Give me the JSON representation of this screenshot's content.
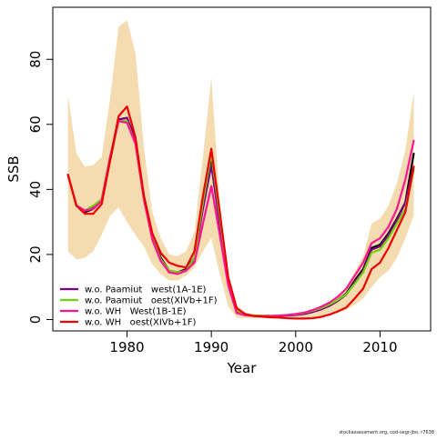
{
  "chart_data": {
    "type": "line",
    "xlabel": "Year",
    "ylabel": "SSB",
    "xlim": [
      1971.2,
      2016.0
    ],
    "ylim": [
      -3.5,
      96
    ],
    "x_ticks": [
      1980,
      1990,
      2000,
      2010
    ],
    "y_ticks": [
      0,
      20,
      40,
      60,
      80
    ],
    "legend_position": "bottom-left",
    "band": {
      "color": "#f5dcb0",
      "years": [
        1973,
        1974,
        1975,
        1976,
        1977,
        1978,
        1979,
        1980,
        1981,
        1982,
        1983,
        1984,
        1985,
        1986,
        1987,
        1988,
        1989,
        1990,
        1991,
        1992,
        1993,
        1994,
        1995,
        1996,
        1997,
        1998,
        1999,
        2000,
        2001,
        2002,
        2003,
        2004,
        2005,
        2006,
        2007,
        2008,
        2009,
        2010,
        2011,
        2012,
        2013,
        2014
      ],
      "upper": [
        69,
        51,
        47,
        47.5,
        50,
        68,
        90,
        92,
        82,
        53,
        33,
        25,
        20,
        19.5,
        21,
        27,
        50,
        74.5,
        36,
        12,
        4.5,
        2.2,
        1.5,
        1.3,
        1.3,
        1.3,
        1.5,
        1.8,
        2.2,
        3,
        4.2,
        5.5,
        7.5,
        10,
        14.5,
        19.5,
        29.5,
        31,
        35,
        42,
        52,
        70
      ],
      "lower": [
        21,
        18.5,
        19,
        21,
        26,
        32,
        34.5,
        30,
        26,
        22.5,
        17,
        14,
        12,
        12,
        13.5,
        16,
        21,
        25,
        14,
        4,
        0.6,
        0.4,
        0.4,
        0.4,
        0.3,
        0.2,
        0.2,
        0.2,
        0.3,
        0.5,
        0.9,
        1.3,
        2,
        3,
        4.5,
        6.5,
        10,
        13,
        15,
        19,
        25,
        32
      ]
    },
    "x": [
      1973,
      1974,
      1975,
      1976,
      1977,
      1978,
      1979,
      1980,
      1981,
      1982,
      1983,
      1984,
      1985,
      1986,
      1987,
      1988,
      1989,
      1990,
      1991,
      1992,
      1993,
      1994,
      1995,
      1996,
      1997,
      1998,
      1999,
      2000,
      2001,
      2002,
      2003,
      2004,
      2005,
      2006,
      2007,
      2008,
      2009,
      2010,
      2011,
      2012,
      2013,
      2014
    ],
    "series": [
      {
        "name": "black",
        "color": "#000000",
        "in_legend": false,
        "values": [
          44.5,
          35,
          33,
          34,
          36.5,
          49,
          61.5,
          62,
          55,
          38,
          26,
          19,
          15,
          14.5,
          15.5,
          19,
          35,
          48.5,
          30,
          11.5,
          2.5,
          1.5,
          1.2,
          1.1,
          1.1,
          1.2,
          1.3,
          1.5,
          1.8,
          2.5,
          3.3,
          4.5,
          6,
          8,
          12,
          15.5,
          22,
          23,
          26.5,
          31,
          36,
          51
        ]
      },
      {
        "name": "w.o. Paamiut   west(1A-1E)",
        "color": "#7b0082",
        "in_legend": true,
        "values": [
          44.5,
          35,
          33.5,
          34.5,
          37,
          50,
          61.5,
          62,
          54.5,
          37.5,
          25.5,
          18.5,
          14.5,
          14.5,
          15,
          18.5,
          34,
          47.5,
          29,
          11,
          2.3,
          1.4,
          1.1,
          1.1,
          1.1,
          1.1,
          1.2,
          1.4,
          1.7,
          2.3,
          3.1,
          4.2,
          5.7,
          7.7,
          11.5,
          15,
          21.5,
          22.5,
          26,
          30.5,
          36,
          47
        ]
      },
      {
        "name": "w.o. Paamiut   oest(XIVb+1F)",
        "color": "#72d10b",
        "in_legend": true,
        "values": [
          44.5,
          35,
          33.5,
          35,
          37,
          50,
          61,
          61,
          54,
          37,
          25,
          18.5,
          15,
          14.5,
          15,
          19,
          36,
          51,
          31.5,
          12.5,
          2.8,
          1.6,
          1.3,
          1.2,
          1.2,
          1.3,
          1.4,
          1.6,
          2,
          2.7,
          3.5,
          4.6,
          6,
          7.8,
          11,
          14.5,
          20.5,
          21.5,
          25,
          29.5,
          34,
          46
        ]
      },
      {
        "name": "w.o. WH   West(1B-1E)",
        "color": "#ff1493",
        "in_legend": true,
        "values": [
          44.5,
          35,
          33.5,
          34,
          36.5,
          50,
          61,
          60.5,
          54,
          37,
          24.5,
          18,
          14.5,
          14,
          15,
          17.5,
          29.5,
          41,
          26,
          10.5,
          2,
          1.3,
          1.1,
          1.1,
          1.1,
          1.2,
          1.4,
          1.7,
          2.1,
          2.9,
          3.9,
          5.2,
          7,
          9.5,
          13.5,
          17.5,
          23.5,
          25,
          28.5,
          34,
          43,
          55
        ]
      },
      {
        "name": "w.o. WH   oest(XIVb+1F)",
        "color": "#ee0000",
        "in_legend": true,
        "values": [
          44.5,
          35,
          32.5,
          32.5,
          35.5,
          49,
          62.5,
          65.5,
          56,
          38,
          26.5,
          20.5,
          17.5,
          16.5,
          16,
          21,
          38,
          52.5,
          33,
          13,
          3.5,
          1.7,
          1.1,
          0.9,
          0.7,
          0.6,
          0.4,
          0.3,
          0.3,
          0.4,
          0.8,
          1.5,
          2.5,
          3.7,
          6.5,
          9.5,
          15.5,
          17.5,
          22,
          27.5,
          33,
          47
        ]
      }
    ]
  },
  "footer_text": "stockassessment.org, cod-segr-jbo, r7638"
}
